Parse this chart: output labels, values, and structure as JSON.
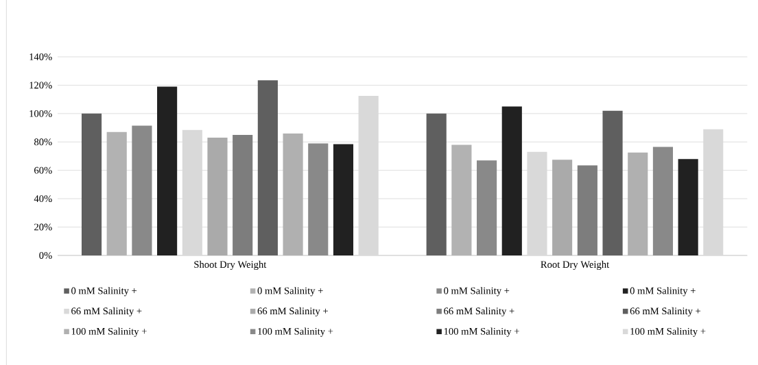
{
  "chart_data": {
    "type": "bar",
    "categories": [
      "Shoot Dry Weight",
      "Root Dry Weight"
    ],
    "series": [
      {
        "name": "0 mM Salinity +",
        "color": "#5f5f5f",
        "values": [
          100,
          100
        ]
      },
      {
        "name": "0 mM Salinity +",
        "color": "#b2b2b2",
        "values": [
          87,
          78
        ]
      },
      {
        "name": "0 mM Salinity +",
        "color": "#898989",
        "values": [
          91.5,
          67
        ]
      },
      {
        "name": "0 mM Salinity +",
        "color": "#212121",
        "values": [
          119,
          105
        ]
      },
      {
        "name": "66 mM Salinity +",
        "color": "#d9d9d9",
        "values": [
          88.5,
          73
        ]
      },
      {
        "name": "66 mM Salinity +",
        "color": "#aaaaaa",
        "values": [
          83,
          67.5
        ]
      },
      {
        "name": "66 mM Salinity +",
        "color": "#7d7d7d",
        "values": [
          85,
          63.5
        ]
      },
      {
        "name": "66 mM Salinity +",
        "color": "#5f5f5f",
        "values": [
          123.5,
          102
        ]
      },
      {
        "name": "100 mM Salinity +",
        "color": "#b0b0b0",
        "values": [
          86,
          72.5
        ]
      },
      {
        "name": "100 mM Salinity +",
        "color": "#898989",
        "values": [
          79,
          76.5
        ]
      },
      {
        "name": "100 mM Salinity +",
        "color": "#212121",
        "values": [
          78.5,
          68
        ]
      },
      {
        "name": "100 mM Salinity +",
        "color": "#d9d9d9",
        "values": [
          112.5,
          89
        ]
      }
    ],
    "ylim": [
      0,
      140
    ],
    "yticks": [
      {
        "value": 0,
        "label": "0%"
      },
      {
        "value": 20,
        "label": "20%"
      },
      {
        "value": 40,
        "label": "40%"
      },
      {
        "value": 60,
        "label": "60%"
      },
      {
        "value": 80,
        "label": "80%"
      },
      {
        "value": 100,
        "label": "100%"
      },
      {
        "value": 120,
        "label": "120%"
      },
      {
        "value": 140,
        "label": "140%"
      }
    ],
    "grid": "y",
    "legend": "bottom"
  }
}
